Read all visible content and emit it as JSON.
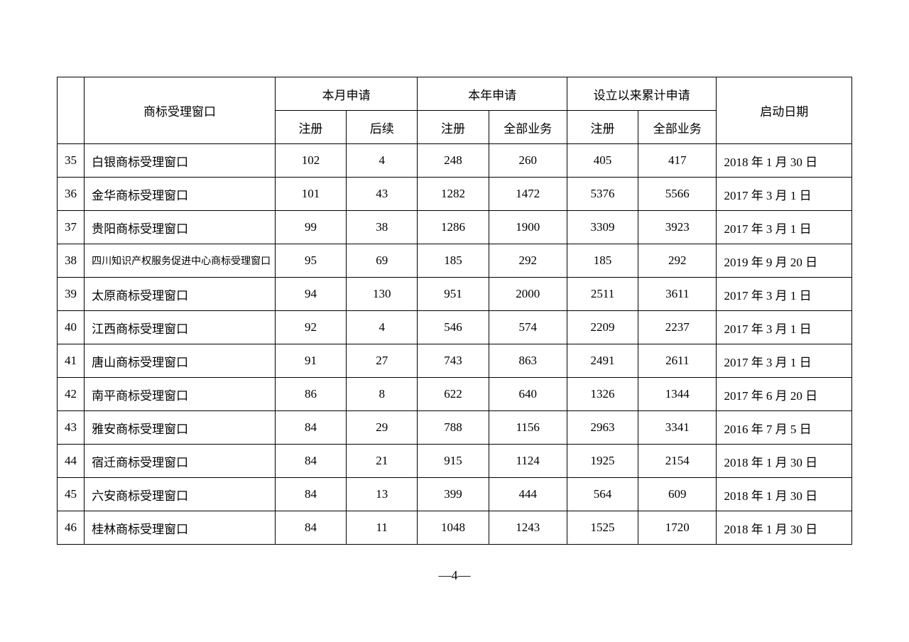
{
  "table": {
    "border_color": "#000000",
    "background_color": "#ffffff",
    "text_color": "#000000",
    "header_fontsize": 17,
    "cell_fontsize": 17,
    "small_cell_fontsize": 14,
    "columns": {
      "name": "商标受理窗口",
      "month_group": "本月申请",
      "month_reg": "注册",
      "month_follow": "后续",
      "year_group": "本年申请",
      "year_reg": "注册",
      "year_all": "全部业务",
      "total_group": "设立以来累计申请",
      "total_reg": "注册",
      "total_all": "全部业务",
      "start_date": "启动日期"
    },
    "rows": [
      {
        "idx": "35",
        "name": "白银商标受理窗口",
        "m_reg": "102",
        "m_fol": "4",
        "y_reg": "248",
        "y_all": "260",
        "t_reg": "405",
        "t_all": "417",
        "date": "2018 年 1 月 30 日",
        "small": false
      },
      {
        "idx": "36",
        "name": "金华商标受理窗口",
        "m_reg": "101",
        "m_fol": "43",
        "y_reg": "1282",
        "y_all": "1472",
        "t_reg": "5376",
        "t_all": "5566",
        "date": "2017 年 3 月 1 日",
        "small": false
      },
      {
        "idx": "37",
        "name": "贵阳商标受理窗口",
        "m_reg": "99",
        "m_fol": "38",
        "y_reg": "1286",
        "y_all": "1900",
        "t_reg": "3309",
        "t_all": "3923",
        "date": "2017 年 3 月 1 日",
        "small": false
      },
      {
        "idx": "38",
        "name": "四川知识产权服务促进中心商标受理窗口",
        "m_reg": "95",
        "m_fol": "69",
        "y_reg": "185",
        "y_all": "292",
        "t_reg": "185",
        "t_all": "292",
        "date": "2019 年 9 月 20 日",
        "small": true
      },
      {
        "idx": "39",
        "name": "太原商标受理窗口",
        "m_reg": "94",
        "m_fol": "130",
        "y_reg": "951",
        "y_all": "2000",
        "t_reg": "2511",
        "t_all": "3611",
        "date": "2017 年 3 月 1 日",
        "small": false
      },
      {
        "idx": "40",
        "name": "江西商标受理窗口",
        "m_reg": "92",
        "m_fol": "4",
        "y_reg": "546",
        "y_all": "574",
        "t_reg": "2209",
        "t_all": "2237",
        "date": "2017 年 3 月 1 日",
        "small": false
      },
      {
        "idx": "41",
        "name": "唐山商标受理窗口",
        "m_reg": "91",
        "m_fol": "27",
        "y_reg": "743",
        "y_all": "863",
        "t_reg": "2491",
        "t_all": "2611",
        "date": "2017 年 3 月 1 日",
        "small": false
      },
      {
        "idx": "42",
        "name": "南平商标受理窗口",
        "m_reg": "86",
        "m_fol": "8",
        "y_reg": "622",
        "y_all": "640",
        "t_reg": "1326",
        "t_all": "1344",
        "date": "2017 年 6 月 20 日",
        "small": false
      },
      {
        "idx": "43",
        "name": "雅安商标受理窗口",
        "m_reg": "84",
        "m_fol": "29",
        "y_reg": "788",
        "y_all": "1156",
        "t_reg": "2963",
        "t_all": "3341",
        "date": "2016 年 7 月 5 日",
        "small": false
      },
      {
        "idx": "44",
        "name": "宿迁商标受理窗口",
        "m_reg": "84",
        "m_fol": "21",
        "y_reg": "915",
        "y_all": "1124",
        "t_reg": "1925",
        "t_all": "2154",
        "date": "2018 年 1 月 30 日",
        "small": false
      },
      {
        "idx": "45",
        "name": "六安商标受理窗口",
        "m_reg": "84",
        "m_fol": "13",
        "y_reg": "399",
        "y_all": "444",
        "t_reg": "564",
        "t_all": "609",
        "date": "2018 年 1 月 30 日",
        "small": false
      },
      {
        "idx": "46",
        "name": "桂林商标受理窗口",
        "m_reg": "84",
        "m_fol": "11",
        "y_reg": "1048",
        "y_all": "1243",
        "t_reg": "1525",
        "t_all": "1720",
        "date": "2018 年 1 月 30 日",
        "small": false
      }
    ]
  },
  "page_number": "—4—"
}
